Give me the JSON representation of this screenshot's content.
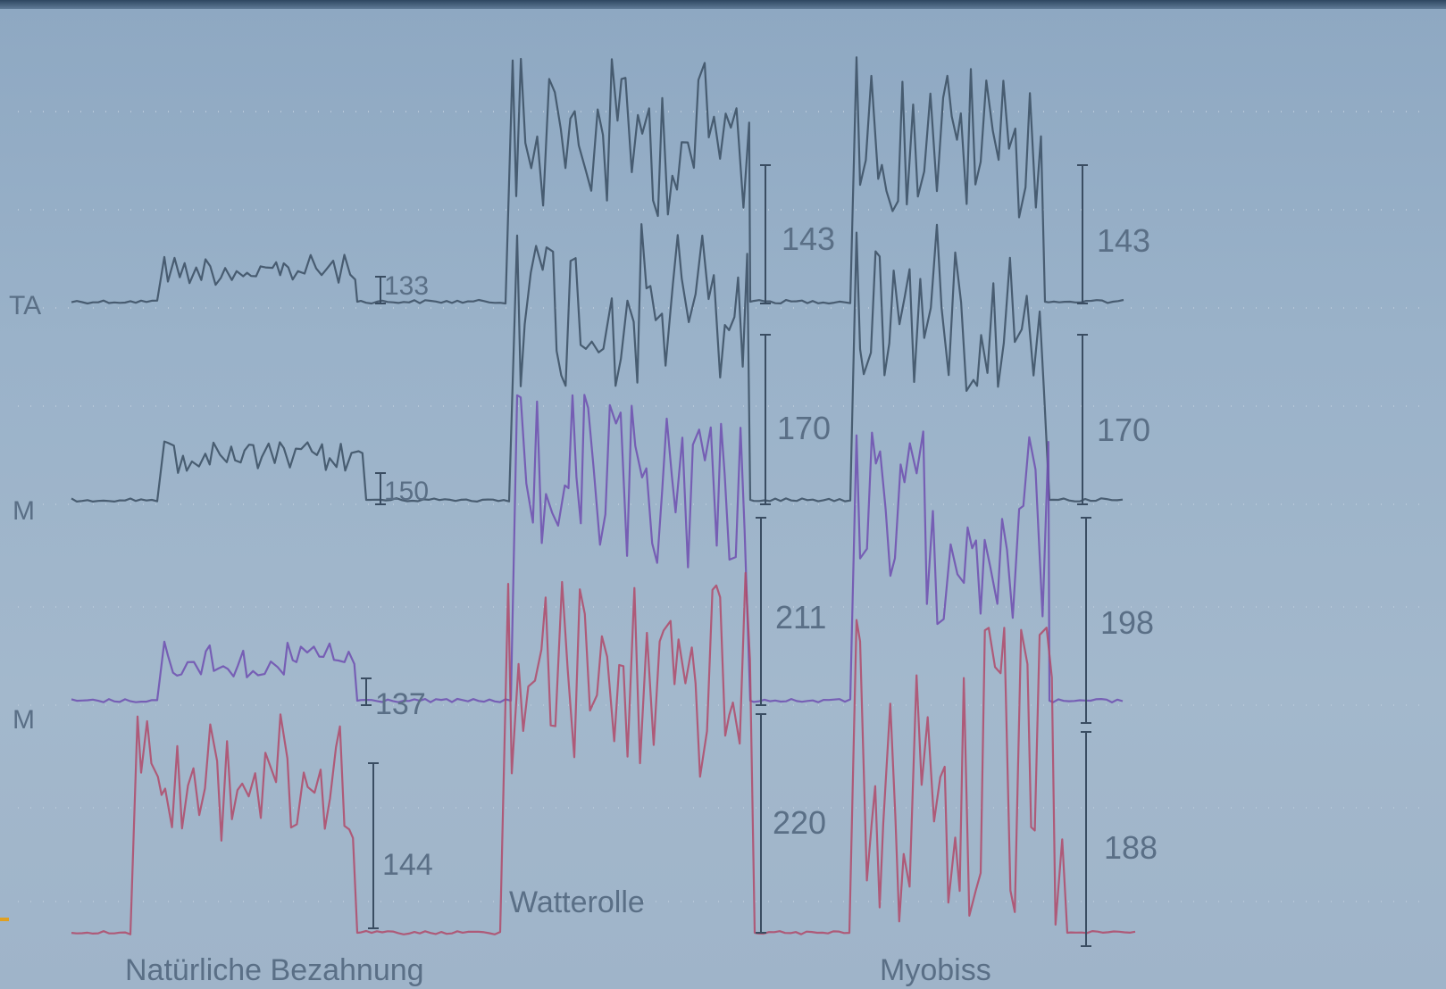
{
  "chart_data": {
    "type": "line",
    "title": "",
    "xlabel": "",
    "ylabel": "",
    "grid": true,
    "colors": {
      "background": "#9cb3ca",
      "trace": "#3a4d62",
      "trace_purple": "#6f4fb0",
      "trace_red": "#b04a6a",
      "label": "#5a6f86"
    },
    "channels": [
      {
        "id": "ta",
        "label": "TA"
      },
      {
        "id": "mm",
        "label": "M"
      },
      {
        "id": "dm",
        "label": "M"
      },
      {
        "id": "bottom",
        "label": ""
      }
    ],
    "conditions": [
      "Natürliche Bezahnung",
      "Watterolle",
      "Myobiss"
    ],
    "amplitudes": [
      {
        "channel": "ta",
        "condition": "Natürliche Bezahnung",
        "value": "133"
      },
      {
        "channel": "mm",
        "condition": "Natürliche Bezahnung",
        "value": "150"
      },
      {
        "channel": "dm",
        "condition": "Natürliche Bezahnung",
        "value": "137"
      },
      {
        "channel": "bottom",
        "condition": "Natürliche Bezahnung",
        "value": "144"
      },
      {
        "channel": "ta",
        "condition": "Watterolle",
        "value": "143"
      },
      {
        "channel": "mm",
        "condition": "Watterolle",
        "value": "170"
      },
      {
        "channel": "dm",
        "condition": "Watterolle",
        "value": "211"
      },
      {
        "channel": "bottom",
        "condition": "Watterolle",
        "value": "220"
      },
      {
        "channel": "ta",
        "condition": "Myobiss",
        "value": "143"
      },
      {
        "channel": "mm",
        "condition": "Myobiss",
        "value": "170"
      },
      {
        "channel": "dm",
        "condition": "Myobiss",
        "value": "198"
      },
      {
        "channel": "bottom",
        "condition": "Myobiss",
        "value": "188"
      }
    ]
  }
}
